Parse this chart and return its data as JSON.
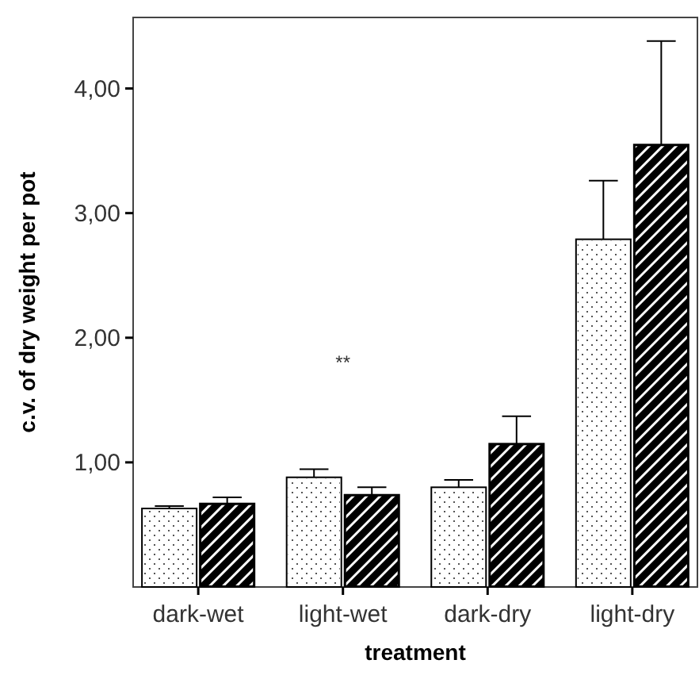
{
  "chart_data": {
    "type": "bar",
    "xlabel": "treatment",
    "ylabel": "c.v. of dry weight per pot",
    "categories": [
      "dark-wet",
      "light-wet",
      "dark-dry",
      "light-dry"
    ],
    "series": [
      {
        "color": "#ffffff",
        "values": [
          0.63,
          0.88,
          0.8,
          2.79
        ],
        "errors": [
          0.02,
          0.065,
          0.06,
          0.47
        ]
      },
      {
        "color": "#000000",
        "values": [
          0.67,
          0.74,
          1.15,
          3.55
        ],
        "errors": [
          0.05,
          0.06,
          0.22,
          0.83
        ]
      }
    ],
    "ylim": [
      0,
      4.57
    ],
    "yticks": [
      {
        "value": 1,
        "label": "1,00"
      },
      {
        "value": 2,
        "label": "2,00"
      },
      {
        "value": 3,
        "label": "3,00"
      },
      {
        "value": 4,
        "label": "4,00"
      }
    ],
    "annotations": [
      "**"
    ],
    "grid": false
  }
}
